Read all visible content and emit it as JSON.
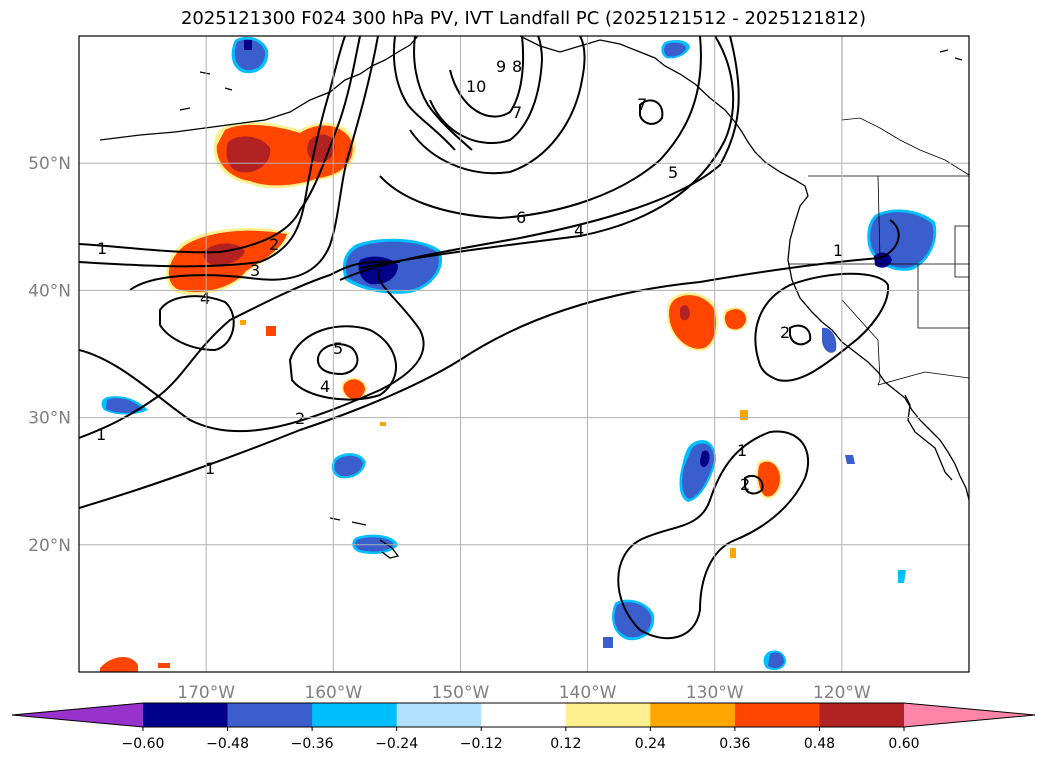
{
  "title": "2025121300 F024 300 hPa PV, IVT Landfall PC (2025121512 - 2025121812)",
  "chart_data": {
    "type": "contour map",
    "title": "2025121300 F024 300 hPa PV, IVT Landfall PC (2025121512 - 2025121812)",
    "lon_range": [
      -180,
      -110
    ],
    "lat_range": [
      10,
      60
    ],
    "lat_ticks": [
      "50°N",
      "40°N",
      "30°N",
      "20°N"
    ],
    "lon_ticks": [
      "170°W",
      "160°W",
      "150°W",
      "140°W",
      "130°W",
      "120°W"
    ],
    "grid": true,
    "colorbar": {
      "orientation": "horizontal",
      "extend": "both",
      "levels": [
        -0.6,
        -0.48,
        -0.36,
        -0.24,
        -0.12,
        0.12,
        0.24,
        0.36,
        0.48,
        0.6
      ],
      "tick_labels": [
        "−0.60",
        "−0.48",
        "−0.36",
        "−0.24",
        "−0.12",
        "0.12",
        "0.24",
        "0.36",
        "0.48",
        "0.60"
      ],
      "colors": [
        "#9932cc",
        "#00008b",
        "#3a5fcd",
        "#00bfff",
        "#b0e2ff",
        "#ffffff",
        "#fff08f",
        "#ffa500",
        "#ff4500",
        "#b22222",
        "#ff85a8"
      ]
    },
    "pv_contour_labels": [
      "1",
      "2",
      "3",
      "4",
      "5",
      "6",
      "7",
      "8",
      "9",
      "10"
    ]
  }
}
